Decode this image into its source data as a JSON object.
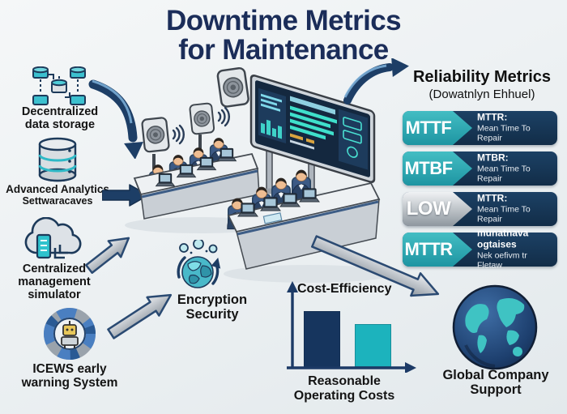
{
  "title": {
    "line1": "Downtime Metrics",
    "line2": "for Maintenance"
  },
  "sidebar": {
    "items": [
      {
        "id": "decentralized-storage",
        "icon": "distributed-storage-icon",
        "line1": "Decentralized",
        "line2": "data storage"
      },
      {
        "id": "advanced-analytics",
        "icon": "database-stack-icon",
        "line1": "Advanced Analytics",
        "line2": "Settwaracaves"
      },
      {
        "id": "centralized-management",
        "icon": "cloud-server-icon",
        "line1": "Centralized",
        "line2": "management",
        "line3": "simulator"
      },
      {
        "id": "icews",
        "icon": "gear-robot-icon",
        "line1": "ICEWS early",
        "line2": "warning System"
      }
    ]
  },
  "encryption": {
    "icon": "encryption-sphere-icon",
    "line1": "Encryption",
    "line2": "Security"
  },
  "metrics": {
    "heading": "Reliability Metrics",
    "subheading": "(Dowatnlyn Ehhuel)",
    "badges": [
      {
        "code": "MTTF",
        "title": "MTTR:",
        "desc": "Mean Time To Repair",
        "variant": "teal"
      },
      {
        "code": "MTBF",
        "title": "MTBR:",
        "desc": "Mean Time To Repair",
        "variant": "teal"
      },
      {
        "code": "LOW",
        "title": "MTTR:",
        "desc": "Mean Time To Repair",
        "variant": "silver"
      },
      {
        "code": "MTTR",
        "title": "munatnava ogtaises",
        "desc": "Nek oefivm tr Fletaw",
        "variant": "teal"
      }
    ]
  },
  "chart_data": {
    "type": "bar",
    "title": "Cost-Efficiency",
    "categories": [
      "",
      ""
    ],
    "values": [
      75,
      58
    ],
    "bar_colors": [
      "#16355e",
      "#1cb3bd"
    ],
    "xlabel_line1": "Reasonable",
    "xlabel_line2": "Operating Costs",
    "ylabel": "",
    "ylim": [
      0,
      100
    ],
    "grid": false,
    "legend": false
  },
  "globe": {
    "icon": "globe-icon",
    "line1": "Global Company",
    "line2": "Support"
  },
  "colors": {
    "background": "#ecf0f3",
    "title_navy": "#1b2d59",
    "arrow_navy": "#1d3e66",
    "badge_navy": "#14334f",
    "accent_teal": "#2aa9b2",
    "silver": "#9aa1a8",
    "text_black": "#141414"
  }
}
